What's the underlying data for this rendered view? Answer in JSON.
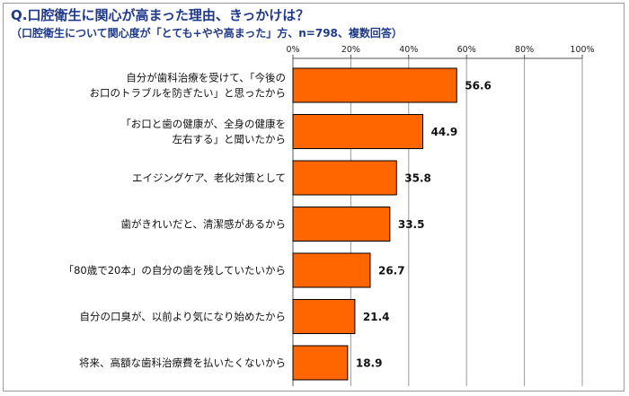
{
  "chart_data": {
    "type": "bar",
    "orientation": "horizontal",
    "title": "Q.口腔衛生に関心が高まった理由、きっかけは？",
    "subtitle": "（口腔衛生について関心度が「とても+やや高まった」方、n=798、複数回答）",
    "categories": [
      [
        "自分が歯科治療を受けて、「今後の",
        "お口のトラブルを防ぎたい」と思ったから"
      ],
      [
        "「お口と歯の健康が、全身の健康を",
        "左右する」と聞いたから"
      ],
      [
        "エイジングケア、老化対策として"
      ],
      [
        "歯がきれいだと、清潔感があるから"
      ],
      [
        "「80歳で20本」の自分の歯を残していたいから"
      ],
      [
        "自分の口臭が、以前より気になり始めたから"
      ],
      [
        "将来、高額な歯科治療費を払いたくないから"
      ]
    ],
    "values": [
      56.6,
      44.9,
      35.8,
      33.5,
      26.7,
      21.4,
      18.9
    ],
    "value_labels": [
      "56.6",
      "44.9",
      "35.8",
      "33.5",
      "26.7",
      "21.4",
      "18.9"
    ],
    "xlim": [
      0,
      100
    ],
    "x_ticks": [
      0,
      20,
      40,
      60,
      80,
      100
    ],
    "x_tick_labels": [
      "0%",
      "20%",
      "40%",
      "60%",
      "80%",
      "100%"
    ],
    "axis_position": "top",
    "grid": "vertical lines at ticks",
    "bar_color": "#ff6600",
    "bar_edge_color": "#000000"
  }
}
